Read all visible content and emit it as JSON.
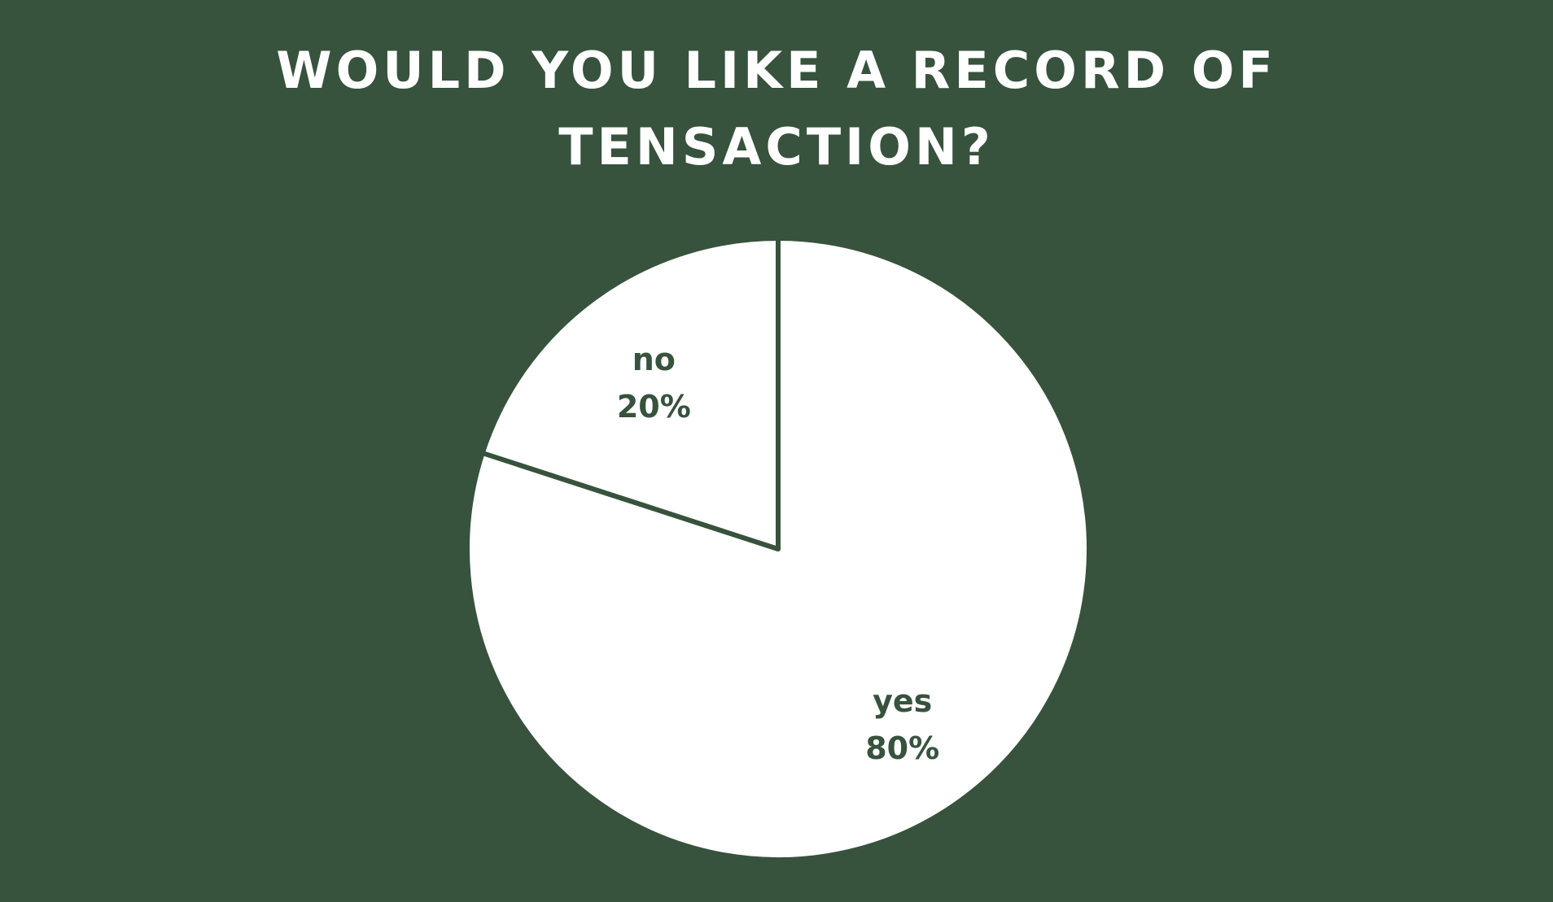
{
  "chart_data": {
    "type": "pie",
    "title": "WOULD YOU LIKE A RECORD OF TENSACTION?",
    "title_lines": [
      "WOULD YOU LIKE A RECORD OF",
      "TENSACTION?"
    ],
    "slices": [
      {
        "label": "yes",
        "value": 80,
        "value_label": "80%"
      },
      {
        "label": "no",
        "value": 20,
        "value_label": "20%"
      }
    ],
    "start_angle_deg": 0,
    "direction": "clockwise",
    "legend": "none",
    "colors": {
      "background": "#37523d",
      "slice_fill": "#ffffff",
      "slice_border": "#37523d",
      "title": "#ffffff",
      "label": "#37523d"
    }
  }
}
